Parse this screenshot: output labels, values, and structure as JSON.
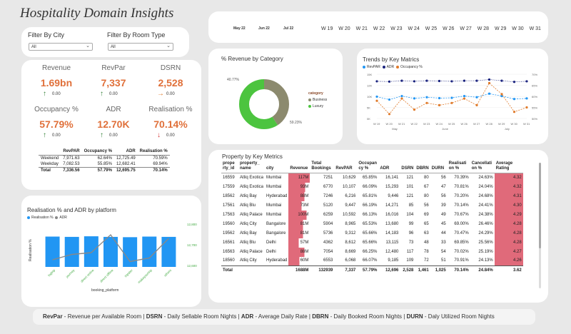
{
  "dashboard": {
    "title": "Hospitality Domain Insights"
  },
  "filters": {
    "city_label": "Filter By City",
    "city_value": "All",
    "room_label": "Filter By Room Type",
    "room_value": "All"
  },
  "date_slicer": {
    "months": [
      "May 22",
      "Jun 22",
      "Jul 22"
    ],
    "weeks": [
      "W 19",
      "W 20",
      "W 21",
      "W 22",
      "W 23",
      "W 24",
      "W 25",
      "W 26",
      "W 27",
      "W 28",
      "W 29",
      "W 30",
      "W 31"
    ]
  },
  "kpis": [
    {
      "label": "Revenue",
      "value": "1.69bn",
      "arrow": "↑",
      "delta": "0.00",
      "color": "#2e7d32"
    },
    {
      "label": "RevPar",
      "value": "7,337",
      "arrow": "↑",
      "delta": "0.00",
      "color": "#2e7d32"
    },
    {
      "label": "DSRN",
      "value": "2,528",
      "arrow": "→",
      "delta": "0.00",
      "color": "#e07a2a"
    },
    {
      "label": "Occupancy %",
      "value": "57.79%",
      "arrow": "↑",
      "delta": "0.00",
      "color": "#2e7d32"
    },
    {
      "label": "ADR",
      "value": "12.70K",
      "arrow": "↑",
      "delta": "0.00",
      "color": "#2e7d32"
    },
    {
      "label": "Realisation %",
      "value": "70.14%",
      "arrow": "↓",
      "delta": "0.00",
      "color": "#d32f2f"
    }
  ],
  "summary_table": {
    "headers": [
      "",
      "RevPAR",
      "Occupancy %",
      "ADR",
      "Realisation %"
    ],
    "rows": [
      [
        "Weekend",
        "7,971.63",
        "62.64%",
        "12,725.49",
        "70.59%"
      ],
      [
        "Weekday",
        "7,082.53",
        "55.85%",
        "12,682.41",
        "69.94%"
      ],
      [
        "Total",
        "7,336.56",
        "57.79%",
        "12,695.75",
        "70.14%"
      ]
    ]
  },
  "donut": {
    "title": "% Revenue by Category",
    "legend_title": "category",
    "label_business": "40.77%",
    "label_luxury": "59.23%",
    "colors": {
      "business": "#8c8a6e",
      "luxury": "#4cc43f"
    }
  },
  "trends": {
    "title": "Trends by Key Matrics",
    "legend": [
      "RevPAR",
      "ADR",
      "Occupancy %"
    ],
    "y_left": [
      "15K",
      "12K",
      "10K",
      "5K",
      "0K"
    ],
    "y_right": [
      "70%",
      "65%",
      "60%",
      "55%",
      "50%"
    ],
    "x": [
      "W 19",
      "W 20",
      "W 21",
      "W 22",
      "W 23",
      "W 24",
      "W 25",
      "W 26",
      "W 27",
      "W 28",
      "W 29",
      "W 30",
      "W 31"
    ],
    "months": [
      "May",
      "June",
      "July"
    ],
    "colors": {
      "revpar": "#2196f3",
      "adr": "#1a237e",
      "occ": "#e07a2a"
    }
  },
  "platform_chart": {
    "title": "Realisation % and ADR by platform",
    "legend": [
      "Realisation %",
      "ADR"
    ],
    "ylabel": "Realisation %",
    "xlabel": "booking_platform",
    "y2_ticks": [
      "12,800",
      "12,700",
      "12,600"
    ],
    "categories": [
      "logtrip",
      "journey",
      "direct online",
      "direct offline",
      "tripster",
      "makeyourtrip",
      "others"
    ],
    "colors": {
      "bar": "#2196f3",
      "line": "#888888"
    }
  },
  "chart_data": [
    {
      "type": "pie",
      "title": "% Revenue by Category",
      "categories": [
        "Business",
        "Luxury"
      ],
      "values": [
        40.77,
        59.23
      ]
    },
    {
      "type": "line",
      "title": "Trends by Key Matrics",
      "x": [
        "W 19",
        "W 20",
        "W 21",
        "W 22",
        "W 23",
        "W 24",
        "W 25",
        "W 26",
        "W 27",
        "W 28",
        "W 29",
        "W 30",
        "W 31"
      ],
      "series": [
        {
          "name": "RevPAR",
          "axis": "left",
          "values": [
            7.4,
            6.4,
            7.6,
            6.8,
            7.2,
            6.9,
            7.0,
            7.6,
            7.2,
            8.4,
            7.6,
            6.6,
            6.8
          ]
        },
        {
          "name": "ADR",
          "axis": "left",
          "values": [
            12.6,
            12.5,
            12.8,
            12.6,
            12.8,
            12.7,
            12.6,
            12.8,
            12.8,
            13.2,
            12.8,
            12.4,
            12.6
          ]
        },
        {
          "name": "Occupancy %",
          "axis": "right",
          "values": [
            58,
            52,
            59,
            54,
            57,
            56,
            57,
            59,
            56,
            66,
            61,
            53,
            55
          ]
        }
      ],
      "ylim_left": [
        0,
        15
      ],
      "ylim_right": [
        50,
        70
      ]
    },
    {
      "type": "bar",
      "title": "Realisation % and ADR by platform",
      "categories": [
        "logtrip",
        "journey",
        "direct online",
        "direct offline",
        "tripster",
        "makeyourtrip",
        "others"
      ],
      "series": [
        {
          "name": "Realisation %",
          "values": [
            70.2,
            70.1,
            70.3,
            70.1,
            70.0,
            70.2,
            70.1
          ]
        },
        {
          "name": "ADR",
          "values": [
            12640,
            12670,
            12680,
            12780,
            12630,
            12650,
            12760
          ]
        }
      ],
      "y2lim": [
        12600,
        12800
      ]
    }
  ],
  "property_table": {
    "title": "Property by Key Metrics",
    "headers": [
      "prope rty_id",
      "property_ name",
      "city",
      "Revenue",
      "Total Bookings",
      "RevPAR",
      "Occupan cy %",
      "ADR",
      "DSRN",
      "DBRN",
      "DURN",
      "Realisati on %",
      "Cancellati on %",
      "Average Rating"
    ],
    "rows": [
      [
        "16559",
        "Atliq Exotica",
        "Mumbai",
        "117M",
        "7251",
        "10,629",
        "65.85%",
        "16,141",
        "121",
        "80",
        "56",
        "70.39%",
        "24.63%",
        "4.32"
      ],
      [
        "17559",
        "Atliq Exotica",
        "Mumbai",
        "93M",
        "6770",
        "10,107",
        "66.09%",
        "15,293",
        "101",
        "67",
        "47",
        "70.81%",
        "24.04%",
        "4.32"
      ],
      [
        "18562",
        "Atliq Bay",
        "Hyderabad",
        "88M",
        "7246",
        "6,216",
        "65.81%",
        "9,446",
        "121",
        "80",
        "56",
        "70.20%",
        "24.68%",
        "4.31"
      ],
      [
        "17561",
        "Atliq Blu",
        "Mumbai",
        "73M",
        "5120",
        "9,447",
        "66.19%",
        "14,271",
        "85",
        "56",
        "39",
        "70.14%",
        "24.41%",
        "4.30"
      ],
      [
        "17563",
        "Atliq Palace",
        "Mumbai",
        "100M",
        "6259",
        "10,592",
        "66.13%",
        "16,016",
        "104",
        "69",
        "49",
        "70.67%",
        "24.38%",
        "4.29"
      ],
      [
        "19560",
        "Atliq City",
        "Bangalore",
        "81M",
        "5904",
        "8,965",
        "65.53%",
        "13,680",
        "99",
        "65",
        "45",
        "69.00%",
        "26.46%",
        "4.28"
      ],
      [
        "19562",
        "Atliq Bay",
        "Bangalore",
        "81M",
        "5736",
        "9,312",
        "65.66%",
        "14,183",
        "96",
        "63",
        "44",
        "70.47%",
        "24.29%",
        "4.28"
      ],
      [
        "16561",
        "Atliq Blu",
        "Delhi",
        "57M",
        "4362",
        "8,612",
        "65.66%",
        "13,115",
        "73",
        "48",
        "33",
        "69.85%",
        "25.56%",
        "4.28"
      ],
      [
        "16563",
        "Atliq Palace",
        "Delhi",
        "88M",
        "7054",
        "8,669",
        "66.25%",
        "12,480",
        "117",
        "78",
        "54",
        "70.02%",
        "25.19%",
        "4.27"
      ],
      [
        "18560",
        "Atliq City",
        "Hyderabad",
        "60M",
        "6553",
        "6,068",
        "66.07%",
        "9,185",
        "109",
        "72",
        "51",
        "70.91%",
        "24.13%",
        "4.26"
      ]
    ],
    "total": [
      "Total",
      "",
      "",
      "1688M",
      "132939",
      "7,337",
      "57.79%",
      "12,696",
      "2,528",
      "1,461",
      "1,025",
      "70.14%",
      "24.84%",
      "3.62"
    ],
    "rev_color": "#e06a7a"
  },
  "footer": [
    {
      "term": "RevPar",
      "def": " - Revenue per Available Room | "
    },
    {
      "term": "DSRN",
      "def": " - Daily Sellable Room Nights | "
    },
    {
      "term": "ADR",
      "def": " - Average Daily Rate | "
    },
    {
      "term": "DBRN",
      "def": " - Daily Booked Room Nights | "
    },
    {
      "term": "DURN",
      "def": " - Daly Utilized Room Nights"
    }
  ]
}
